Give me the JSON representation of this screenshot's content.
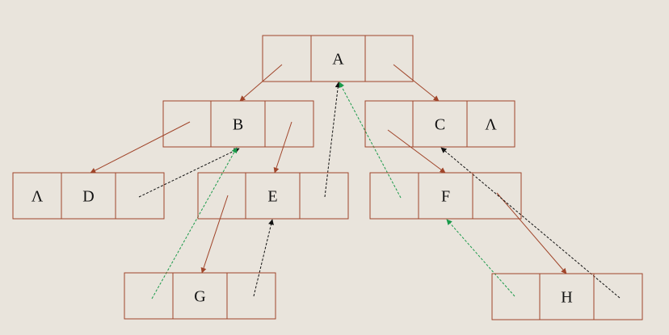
{
  "nodes": [
    {
      "id": "A",
      "label": "A",
      "left_null": "",
      "right_null": ""
    },
    {
      "id": "B",
      "label": "B",
      "left_null": "",
      "right_null": ""
    },
    {
      "id": "C",
      "label": "C",
      "left_null": "",
      "right_null": "Λ"
    },
    {
      "id": "D",
      "label": "D",
      "left_null": "Λ",
      "right_null": ""
    },
    {
      "id": "E",
      "label": "E",
      "left_null": "",
      "right_null": ""
    },
    {
      "id": "F",
      "label": "F",
      "left_null": "",
      "right_null": ""
    },
    {
      "id": "G",
      "label": "G",
      "left_null": "",
      "right_null": ""
    },
    {
      "id": "H",
      "label": "H",
      "left_null": "",
      "right_null": ""
    }
  ],
  "child_links": [
    {
      "from": "A",
      "side": "left",
      "to": "B"
    },
    {
      "from": "A",
      "side": "right",
      "to": "C"
    },
    {
      "from": "B",
      "side": "left",
      "to": "D"
    },
    {
      "from": "B",
      "side": "right",
      "to": "E"
    },
    {
      "from": "C",
      "side": "left",
      "to": "F"
    },
    {
      "from": "E",
      "side": "left",
      "to": "G"
    },
    {
      "from": "F",
      "side": "right",
      "to": "H"
    }
  ],
  "threads": [
    {
      "from": "D",
      "side": "right",
      "to": "B",
      "color": "#111111"
    },
    {
      "from": "E",
      "side": "right",
      "to": "A",
      "color": "#111111"
    },
    {
      "from": "G",
      "side": "right",
      "to": "E",
      "color": "#111111"
    },
    {
      "from": "H",
      "side": "right",
      "to": "C",
      "color": "#111111"
    },
    {
      "from": "G",
      "side": "left",
      "to": "B",
      "color": "#1a9a4a"
    },
    {
      "from": "F",
      "side": "left",
      "to": "A",
      "color": "#1a9a4a"
    },
    {
      "from": "H",
      "side": "left",
      "to": "F",
      "color": "#1a9a4a"
    }
  ],
  "colors": {
    "background": "#e9e4dc",
    "box": "#a0452a",
    "child_link": "#a0452a"
  }
}
